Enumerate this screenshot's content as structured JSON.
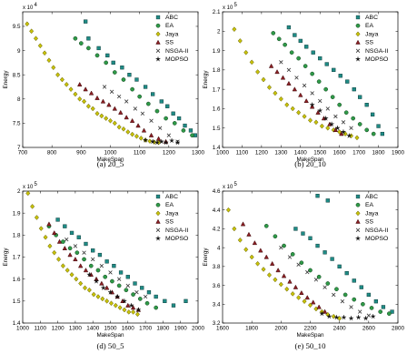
{
  "series_styles": [
    {
      "name": "ABC",
      "marker": "square",
      "fill": "#1f8c86",
      "stroke": "#0f3f3d"
    },
    {
      "name": "EA",
      "marker": "circle",
      "fill": "#2f9a48",
      "stroke": "#12401d"
    },
    {
      "name": "Jaya",
      "marker": "diamond",
      "fill": "#c8c20a",
      "stroke": "#5e5a00"
    },
    {
      "name": "SS",
      "marker": "triangle",
      "fill": "#8c1f24",
      "stroke": "#3d0b0d"
    },
    {
      "name": "NSGA-II",
      "marker": "x",
      "fill": "none",
      "stroke": "#333333"
    },
    {
      "name": "MOPSO",
      "marker": "star",
      "fill": "#161616",
      "stroke": "#000000"
    }
  ],
  "chart_data": [
    {
      "type": "scatter",
      "caption": "(a)  20_5",
      "xlabel": "MakeSpan",
      "ylabel": "Energy",
      "exponent_label": "x 10",
      "exponent_power": "4",
      "xlim": [
        700,
        1300
      ],
      "ylim": [
        7.0,
        9.8
      ],
      "xticks": [
        "700",
        "800",
        "900",
        "1000",
        "1100",
        "1200",
        "1300"
      ],
      "yticks": [
        "7",
        "7.5",
        "8",
        "8.5",
        "9",
        "9.5"
      ],
      "xtick_values": [
        700,
        800,
        900,
        1000,
        1100,
        1200,
        1300
      ],
      "ytick_values": [
        7,
        7.5,
        8,
        8.5,
        9,
        9.5
      ],
      "legend_position": "top-right",
      "series": [
        {
          "name": "ABC",
          "x": [
            915,
            925,
            960,
            990,
            1010,
            1040,
            1065,
            1090,
            1120,
            1145,
            1175,
            1195,
            1215,
            1235,
            1255,
            1275,
            1290
          ],
          "y": [
            9.6,
            9.25,
            9.05,
            8.9,
            8.75,
            8.65,
            8.5,
            8.4,
            8.25,
            8.1,
            7.95,
            7.85,
            7.7,
            7.6,
            7.45,
            7.35,
            7.25
          ]
        },
        {
          "name": "EA",
          "x": [
            880,
            900,
            925,
            955,
            985,
            1015,
            1045,
            1075,
            1100,
            1130,
            1160,
            1190,
            1220,
            1250,
            1280
          ],
          "y": [
            9.25,
            9.15,
            9.05,
            8.9,
            8.75,
            8.55,
            8.4,
            8.2,
            8.05,
            7.9,
            7.75,
            7.6,
            7.5,
            7.35,
            7.25
          ]
        },
        {
          "name": "Jaya",
          "x": [
            715,
            730,
            745,
            760,
            775,
            790,
            805,
            820,
            835,
            850,
            865,
            880,
            895,
            910,
            925,
            940,
            955,
            970,
            985,
            1000,
            1015,
            1030,
            1045,
            1060,
            1075,
            1090,
            1105,
            1120,
            1135,
            1150,
            1165
          ],
          "y": [
            9.55,
            9.4,
            9.25,
            9.1,
            8.95,
            8.8,
            8.65,
            8.5,
            8.4,
            8.3,
            8.2,
            8.1,
            8.0,
            7.95,
            7.85,
            7.8,
            7.7,
            7.65,
            7.6,
            7.55,
            7.5,
            7.42,
            7.38,
            7.32,
            7.27,
            7.23,
            7.19,
            7.15,
            7.13,
            7.11,
            7.1
          ]
        },
        {
          "name": "SS",
          "x": [
            895,
            915,
            935,
            955,
            975,
            995,
            1015,
            1035,
            1055,
            1075,
            1095,
            1115,
            1140,
            1165,
            1190
          ],
          "y": [
            8.3,
            8.2,
            8.12,
            8.02,
            7.95,
            7.88,
            7.8,
            7.72,
            7.62,
            7.55,
            7.45,
            7.35,
            7.25,
            7.18,
            7.12
          ]
        },
        {
          "name": "NSGA-II",
          "x": [
            980,
            1005,
            1030,
            1055,
            1085,
            1110,
            1140,
            1170,
            1200,
            1230
          ],
          "y": [
            8.25,
            8.15,
            8.05,
            7.95,
            7.8,
            7.7,
            7.55,
            7.4,
            7.25,
            7.12
          ]
        },
        {
          "name": "MOPSO",
          "x": [
            1120,
            1145,
            1160,
            1175,
            1190,
            1210,
            1230
          ],
          "y": [
            7.15,
            7.12,
            7.1,
            7.12,
            7.1,
            7.14,
            7.1
          ]
        }
      ]
    },
    {
      "type": "scatter",
      "caption": "(b)  20_10",
      "xlabel": "MakeSpan",
      "ylabel": "Energy",
      "exponent_label": "x 10",
      "exponent_power": "5",
      "xlim": [
        1000,
        1900
      ],
      "ylim": [
        1.4,
        2.1
      ],
      "xticks": [
        "1000",
        "1100",
        "1200",
        "1300",
        "1400",
        "1500",
        "1600",
        "1700",
        "1800",
        "1900"
      ],
      "yticks": [
        "1.4",
        "1.5",
        "1.6",
        "1.7",
        "1.8",
        "1.9",
        "2",
        "2.1"
      ],
      "xtick_values": [
        1000,
        1100,
        1200,
        1300,
        1400,
        1500,
        1600,
        1700,
        1800,
        1900
      ],
      "ytick_values": [
        1.4,
        1.5,
        1.6,
        1.7,
        1.8,
        1.9,
        2.0,
        2.1
      ],
      "legend_position": "top-right",
      "series": [
        {
          "name": "ABC",
          "x": [
            1340,
            1370,
            1400,
            1430,
            1465,
            1500,
            1535,
            1570,
            1605,
            1640,
            1675,
            1705,
            1740,
            1770,
            1800,
            1820
          ],
          "y": [
            2.02,
            1.98,
            1.95,
            1.92,
            1.89,
            1.86,
            1.83,
            1.8,
            1.77,
            1.74,
            1.7,
            1.66,
            1.62,
            1.57,
            1.51,
            1.47
          ]
        },
        {
          "name": "EA",
          "x": [
            1260,
            1290,
            1320,
            1355,
            1390,
            1425,
            1460,
            1495,
            1530,
            1565,
            1600,
            1635,
            1670,
            1705,
            1740,
            1775
          ],
          "y": [
            1.99,
            1.96,
            1.93,
            1.89,
            1.86,
            1.82,
            1.78,
            1.74,
            1.7,
            1.66,
            1.62,
            1.58,
            1.55,
            1.52,
            1.49,
            1.47
          ]
        },
        {
          "name": "Jaya",
          "x": [
            1060,
            1090,
            1120,
            1150,
            1180,
            1210,
            1240,
            1270,
            1300,
            1330,
            1360,
            1390,
            1420,
            1450,
            1480,
            1510,
            1540,
            1570,
            1600,
            1630,
            1660,
            1690
          ],
          "y": [
            2.01,
            1.95,
            1.89,
            1.84,
            1.79,
            1.75,
            1.71,
            1.68,
            1.65,
            1.62,
            1.6,
            1.58,
            1.56,
            1.54,
            1.53,
            1.51,
            1.5,
            1.49,
            1.48,
            1.47,
            1.46,
            1.45
          ]
        },
        {
          "name": "SS",
          "x": [
            1250,
            1280,
            1310,
            1340,
            1370,
            1400,
            1430,
            1460,
            1490,
            1520,
            1550,
            1580,
            1610
          ],
          "y": [
            1.82,
            1.79,
            1.76,
            1.73,
            1.7,
            1.67,
            1.64,
            1.61,
            1.58,
            1.55,
            1.52,
            1.49,
            1.47
          ]
        },
        {
          "name": "NSGA-II",
          "x": [
            1300,
            1340,
            1380,
            1420,
            1460,
            1500,
            1540,
            1580,
            1620,
            1660
          ],
          "y": [
            1.84,
            1.8,
            1.76,
            1.72,
            1.68,
            1.64,
            1.6,
            1.56,
            1.53,
            1.5
          ]
        },
        {
          "name": "MOPSO",
          "x": [
            1460,
            1500,
            1530,
            1560,
            1590,
            1620,
            1650
          ],
          "y": [
            1.62,
            1.59,
            1.55,
            1.52,
            1.5,
            1.48,
            1.46
          ]
        }
      ]
    },
    {
      "type": "scatter",
      "caption": "(d)  50_5",
      "xlabel": "MakeSpan",
      "ylabel": "Energy",
      "exponent_label": "x 10",
      "exponent_power": "5",
      "xlim": [
        1000,
        2000
      ],
      "ylim": [
        1.4,
        2.0
      ],
      "xticks": [
        "1000",
        "1100",
        "1200",
        "1300",
        "1400",
        "1500",
        "1600",
        "1700",
        "1800",
        "1900",
        "2000"
      ],
      "yticks": [
        "1.4",
        "1.5",
        "1.6",
        "1.7",
        "1.8",
        "1.9",
        "2"
      ],
      "xtick_values": [
        1000,
        1100,
        1200,
        1300,
        1400,
        1500,
        1600,
        1700,
        1800,
        1900,
        2000
      ],
      "ytick_values": [
        1.4,
        1.5,
        1.6,
        1.7,
        1.8,
        1.9,
        2.0
      ],
      "legend_position": "top-right",
      "series": [
        {
          "name": "ABC",
          "x": [
            1200,
            1240,
            1280,
            1320,
            1360,
            1400,
            1440,
            1480,
            1520,
            1560,
            1600,
            1640,
            1680,
            1720,
            1760,
            1810,
            1860,
            1930
          ],
          "y": [
            1.87,
            1.84,
            1.81,
            1.79,
            1.76,
            1.73,
            1.71,
            1.68,
            1.66,
            1.63,
            1.61,
            1.58,
            1.56,
            1.54,
            1.52,
            1.5,
            1.48,
            1.5
          ]
        },
        {
          "name": "EA",
          "x": [
            1150,
            1190,
            1230,
            1270,
            1310,
            1350,
            1390,
            1430,
            1470,
            1510,
            1550,
            1590,
            1630,
            1670,
            1710,
            1760
          ],
          "y": [
            1.84,
            1.8,
            1.77,
            1.74,
            1.72,
            1.69,
            1.66,
            1.64,
            1.61,
            1.59,
            1.57,
            1.55,
            1.53,
            1.51,
            1.49,
            1.47
          ]
        },
        {
          "name": "Jaya",
          "x": [
            1030,
            1055,
            1080,
            1105,
            1130,
            1155,
            1180,
            1205,
            1230,
            1255,
            1280,
            1305,
            1330,
            1355,
            1380,
            1405,
            1430,
            1455,
            1480,
            1505,
            1530,
            1555,
            1580,
            1605,
            1630,
            1655
          ],
          "y": [
            1.99,
            1.93,
            1.88,
            1.83,
            1.79,
            1.75,
            1.72,
            1.69,
            1.66,
            1.64,
            1.62,
            1.6,
            1.58,
            1.56,
            1.55,
            1.53,
            1.52,
            1.51,
            1.5,
            1.49,
            1.48,
            1.47,
            1.46,
            1.45,
            1.45,
            1.44
          ]
        },
        {
          "name": "SS",
          "x": [
            1150,
            1180,
            1210,
            1240,
            1270,
            1300,
            1330,
            1360,
            1390,
            1420,
            1450,
            1480,
            1510,
            1540,
            1570,
            1600,
            1630,
            1660
          ],
          "y": [
            1.85,
            1.81,
            1.77,
            1.74,
            1.71,
            1.69,
            1.66,
            1.64,
            1.62,
            1.6,
            1.58,
            1.56,
            1.54,
            1.52,
            1.5,
            1.48,
            1.47,
            1.46
          ]
        },
        {
          "name": "NSGA-II",
          "x": [
            1250,
            1300,
            1350,
            1400,
            1450,
            1500,
            1550,
            1600,
            1650,
            1700
          ],
          "y": [
            1.78,
            1.75,
            1.72,
            1.69,
            1.66,
            1.63,
            1.6,
            1.57,
            1.54,
            1.52
          ]
        },
        {
          "name": "MOPSO",
          "x": [
            1380,
            1420,
            1460,
            1500,
            1540,
            1580,
            1620,
            1660
          ],
          "y": [
            1.62,
            1.59,
            1.56,
            1.54,
            1.52,
            1.5,
            1.48,
            1.46
          ]
        }
      ]
    },
    {
      "type": "scatter",
      "caption": "(e)  50_10",
      "xlabel": "MakeSpan",
      "ylabel": "Energy",
      "exponent_label": "x 10",
      "exponent_power": "5",
      "xlim": [
        1600,
        2800
      ],
      "ylim": [
        3.2,
        4.6
      ],
      "xticks": [
        "1600",
        "1800",
        "2000",
        "2200",
        "2400",
        "2600",
        "2800"
      ],
      "yticks": [
        "3.2",
        "3.4",
        "3.6",
        "3.8",
        "4",
        "4.2",
        "4.4",
        "4.6"
      ],
      "xtick_values": [
        1600,
        1800,
        2000,
        2200,
        2400,
        2600,
        2800
      ],
      "ytick_values": [
        3.2,
        3.4,
        3.6,
        3.8,
        4.0,
        4.2,
        4.4,
        4.6
      ],
      "legend_position": "top-right",
      "series": [
        {
          "name": "ABC",
          "x": [
            2100,
            2150,
            2200,
            2250,
            2300,
            2350,
            2400,
            2450,
            2500,
            2550,
            2600,
            2650,
            2700,
            2760,
            2250,
            2320
          ],
          "y": [
            4.2,
            4.15,
            4.1,
            4.02,
            3.95,
            3.88,
            3.8,
            3.73,
            3.65,
            3.58,
            3.5,
            3.43,
            3.37,
            3.32,
            4.55,
            4.5
          ]
        },
        {
          "name": "EA",
          "x": [
            1900,
            1960,
            2020,
            2080,
            2140,
            2200,
            2260,
            2320,
            2380,
            2440,
            2500,
            2560,
            2620,
            2680,
            2740
          ],
          "y": [
            4.23,
            4.12,
            4.02,
            3.93,
            3.84,
            3.76,
            3.69,
            3.62,
            3.56,
            3.5,
            3.45,
            3.4,
            3.36,
            3.32,
            3.3
          ]
        },
        {
          "name": "Jaya",
          "x": [
            1640,
            1680,
            1720,
            1760,
            1800,
            1840,
            1880,
            1920,
            1960,
            2000,
            2040,
            2080,
            2120,
            2160,
            2200,
            2240,
            2280,
            2320,
            2360,
            2400
          ],
          "y": [
            4.4,
            4.2,
            4.08,
            3.98,
            3.9,
            3.83,
            3.77,
            3.71,
            3.66,
            3.61,
            3.56,
            3.51,
            3.47,
            3.43,
            3.39,
            3.35,
            3.32,
            3.29,
            3.27,
            3.25
          ]
        },
        {
          "name": "SS",
          "x": [
            1740,
            1780,
            1820,
            1860,
            1900,
            1940,
            1980,
            2020,
            2060,
            2100,
            2140,
            2180,
            2220,
            2260,
            2300
          ],
          "y": [
            4.25,
            4.14,
            4.05,
            3.97,
            3.9,
            3.83,
            3.76,
            3.7,
            3.64,
            3.58,
            3.52,
            3.47,
            3.42,
            3.37,
            3.32
          ]
        },
        {
          "name": "NSGA-II",
          "x": [
            2000,
            2060,
            2120,
            2180,
            2240,
            2300,
            2360,
            2420,
            2480,
            2540,
            2600
          ],
          "y": [
            4.0,
            3.9,
            3.82,
            3.74,
            3.66,
            3.58,
            3.5,
            3.43,
            3.37,
            3.32,
            3.28
          ]
        },
        {
          "name": "MOPSO",
          "x": [
            2280,
            2330,
            2380,
            2430,
            2480,
            2530,
            2580,
            2630
          ],
          "y": [
            3.3,
            3.27,
            3.26,
            3.26,
            3.25,
            3.26,
            3.25,
            3.27
          ]
        }
      ]
    }
  ]
}
